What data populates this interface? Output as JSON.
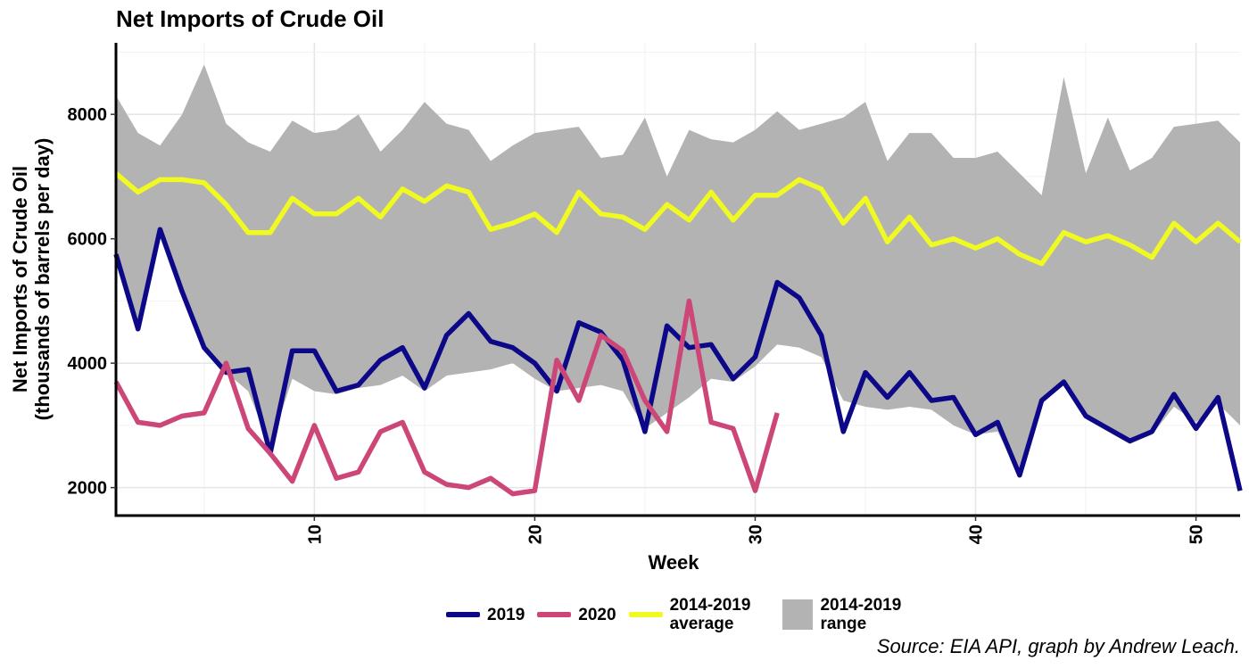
{
  "title": "Net Imports of Crude Oil",
  "source": "Source: EIA API, graph by Andrew Leach.",
  "chart_data": {
    "type": "line",
    "title": "Net Imports of Crude Oil",
    "xlabel": "Week",
    "ylabel": "Net Imports of Crude Oil\n(thousands of barrels per day)",
    "xlim": [
      1,
      52
    ],
    "ylim": [
      1550,
      9150
    ],
    "xticks": [
      10,
      20,
      30,
      40,
      50
    ],
    "yticks": [
      2000,
      4000,
      6000,
      8000
    ],
    "grid": true,
    "legend_position": "bottom",
    "colors": {
      "2019": "#0d0887",
      "2020": "#cc4778",
      "average": "#f0f921",
      "range": "#b3b3b3"
    },
    "range": {
      "name": "2014-2019\nrange",
      "upper": [
        8300,
        7700,
        7500,
        8000,
        8800,
        7850,
        7550,
        7400,
        7900,
        7700,
        7750,
        8000,
        7400,
        7750,
        8200,
        7850,
        7750,
        7250,
        7500,
        7700,
        7750,
        7800,
        7300,
        7350,
        7950,
        7000,
        7750,
        7600,
        7550,
        7750,
        8050,
        7750,
        7850,
        7950,
        8200,
        7250,
        7700,
        7700,
        7300,
        7300,
        7400,
        7050,
        6700,
        8600,
        7050,
        7950,
        7100,
        7300,
        7800,
        7850,
        7900,
        7550
      ],
      "lower": [
        5750,
        4550,
        6150,
        5150,
        4300,
        3850,
        3550,
        2650,
        3750,
        3550,
        3500,
        3600,
        3650,
        3800,
        3550,
        3800,
        3850,
        3900,
        4000,
        3750,
        3550,
        3600,
        3650,
        3550,
        2950,
        3200,
        3450,
        3750,
        3700,
        3950,
        4300,
        4250,
        4100,
        3400,
        3300,
        3250,
        3300,
        3250,
        3000,
        2850,
        2900,
        2200,
        3350,
        3700,
        3100,
        2900,
        2700,
        2850,
        3300,
        3050,
        3350,
        3000
      ]
    },
    "series": [
      {
        "name": "2019",
        "values": [
          5750,
          4550,
          6150,
          5150,
          4250,
          3850,
          3900,
          2550,
          4200,
          4200,
          3550,
          3650,
          4050,
          4250,
          3600,
          4450,
          4800,
          4350,
          4250,
          4000,
          3550,
          4650,
          4500,
          4050,
          2900,
          4600,
          4250,
          4300,
          3750,
          4100,
          5300,
          5050,
          4450,
          2900,
          3850,
          3450,
          3850,
          3400,
          3450,
          2850,
          3050,
          2200,
          3400,
          3700,
          3150,
          2950,
          2750,
          2900,
          3500,
          2950,
          3450,
          1950
        ]
      },
      {
        "name": "2020",
        "values": [
          3700,
          3050,
          3000,
          3150,
          3200,
          4000,
          2950,
          2550,
          2100,
          3000,
          2150,
          2250,
          2900,
          3050,
          2250,
          2050,
          2000,
          2150,
          1900,
          1950,
          4050,
          3400,
          4450,
          4200,
          3400,
          2900,
          5000,
          3050,
          2950,
          1950,
          3200
        ]
      },
      {
        "name": "2014-2019\naverage",
        "values": [
          7050,
          6750,
          6950,
          6950,
          6900,
          6550,
          6100,
          6100,
          6650,
          6400,
          6400,
          6650,
          6350,
          6800,
          6600,
          6850,
          6750,
          6150,
          6250,
          6400,
          6100,
          6750,
          6400,
          6350,
          6150,
          6550,
          6300,
          6750,
          6300,
          6700,
          6700,
          6950,
          6800,
          6250,
          6650,
          5950,
          6350,
          5900,
          6000,
          5850,
          6000,
          5750,
          5600,
          6100,
          5950,
          6050,
          5900,
          5700,
          6250,
          5950,
          6250,
          5950
        ]
      }
    ]
  }
}
